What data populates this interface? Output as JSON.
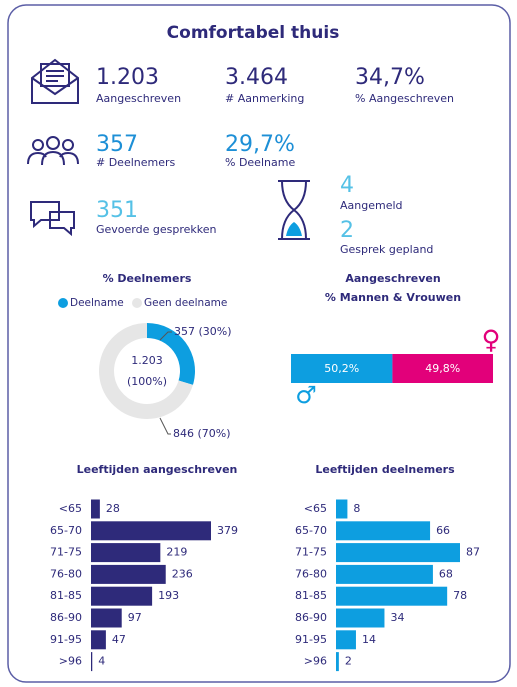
{
  "title": "Comfortabel thuis",
  "stats": [
    {
      "value": "1.203",
      "label": "Aangeschreven"
    },
    {
      "value": "3.464",
      "label": "# Aanmerking"
    },
    {
      "value": "34,7%",
      "label": "% Aangeschreven"
    },
    {
      "value": "357",
      "label": "# Deelnemers"
    },
    {
      "value": "29,7%",
      "label": "% Deelname"
    },
    {
      "value": "351",
      "label": "Gevoerde gesprekken"
    },
    {
      "value": "4",
      "label": "Aangemeld"
    },
    {
      "value": "2",
      "label": "Gesprek gepland"
    }
  ],
  "chart_data": [
    {
      "type": "pie",
      "title": "% Deelnemers",
      "categories": [
        "Deelname",
        "Geen deelname"
      ],
      "values": [
        357,
        846
      ],
      "value_labels": [
        "357 (30%)",
        "846 (70%)"
      ],
      "colors": [
        "#0d9ee0",
        "#e6e6e6"
      ],
      "center_labels": [
        "1.203",
        "(100%)"
      ]
    },
    {
      "type": "stacked-bar",
      "title": "Aangeschreven",
      "subtitle": "% Mannen & Vrouwen",
      "series": [
        {
          "color": "#0d9ee0",
          "values": [
            50.2
          ],
          "value_labels": [
            "50,2%"
          ]
        },
        {
          "color": "#e2007a",
          "values": [
            49.8
          ],
          "value_labels": [
            "49,8%"
          ]
        }
      ]
    },
    {
      "type": "hbar",
      "title": "Leeftijden aangeschreven",
      "categories": [
        "<65",
        "65-70",
        "71-75",
        "76-80",
        "81-85",
        "86-90",
        "91-95",
        ">96"
      ],
      "values": [
        28,
        379,
        219,
        236,
        193,
        97,
        47,
        4
      ],
      "color": "#2e2a7a"
    },
    {
      "type": "hbar",
      "title": "Leeftijden deelnemers",
      "categories": [
        "<65",
        "65-70",
        "71-75",
        "76-80",
        "81-85",
        "86-90",
        "91-95",
        ">96"
      ],
      "values": [
        8,
        66,
        87,
        68,
        78,
        34,
        14,
        2
      ],
      "color": "#0d9ee0"
    }
  ]
}
